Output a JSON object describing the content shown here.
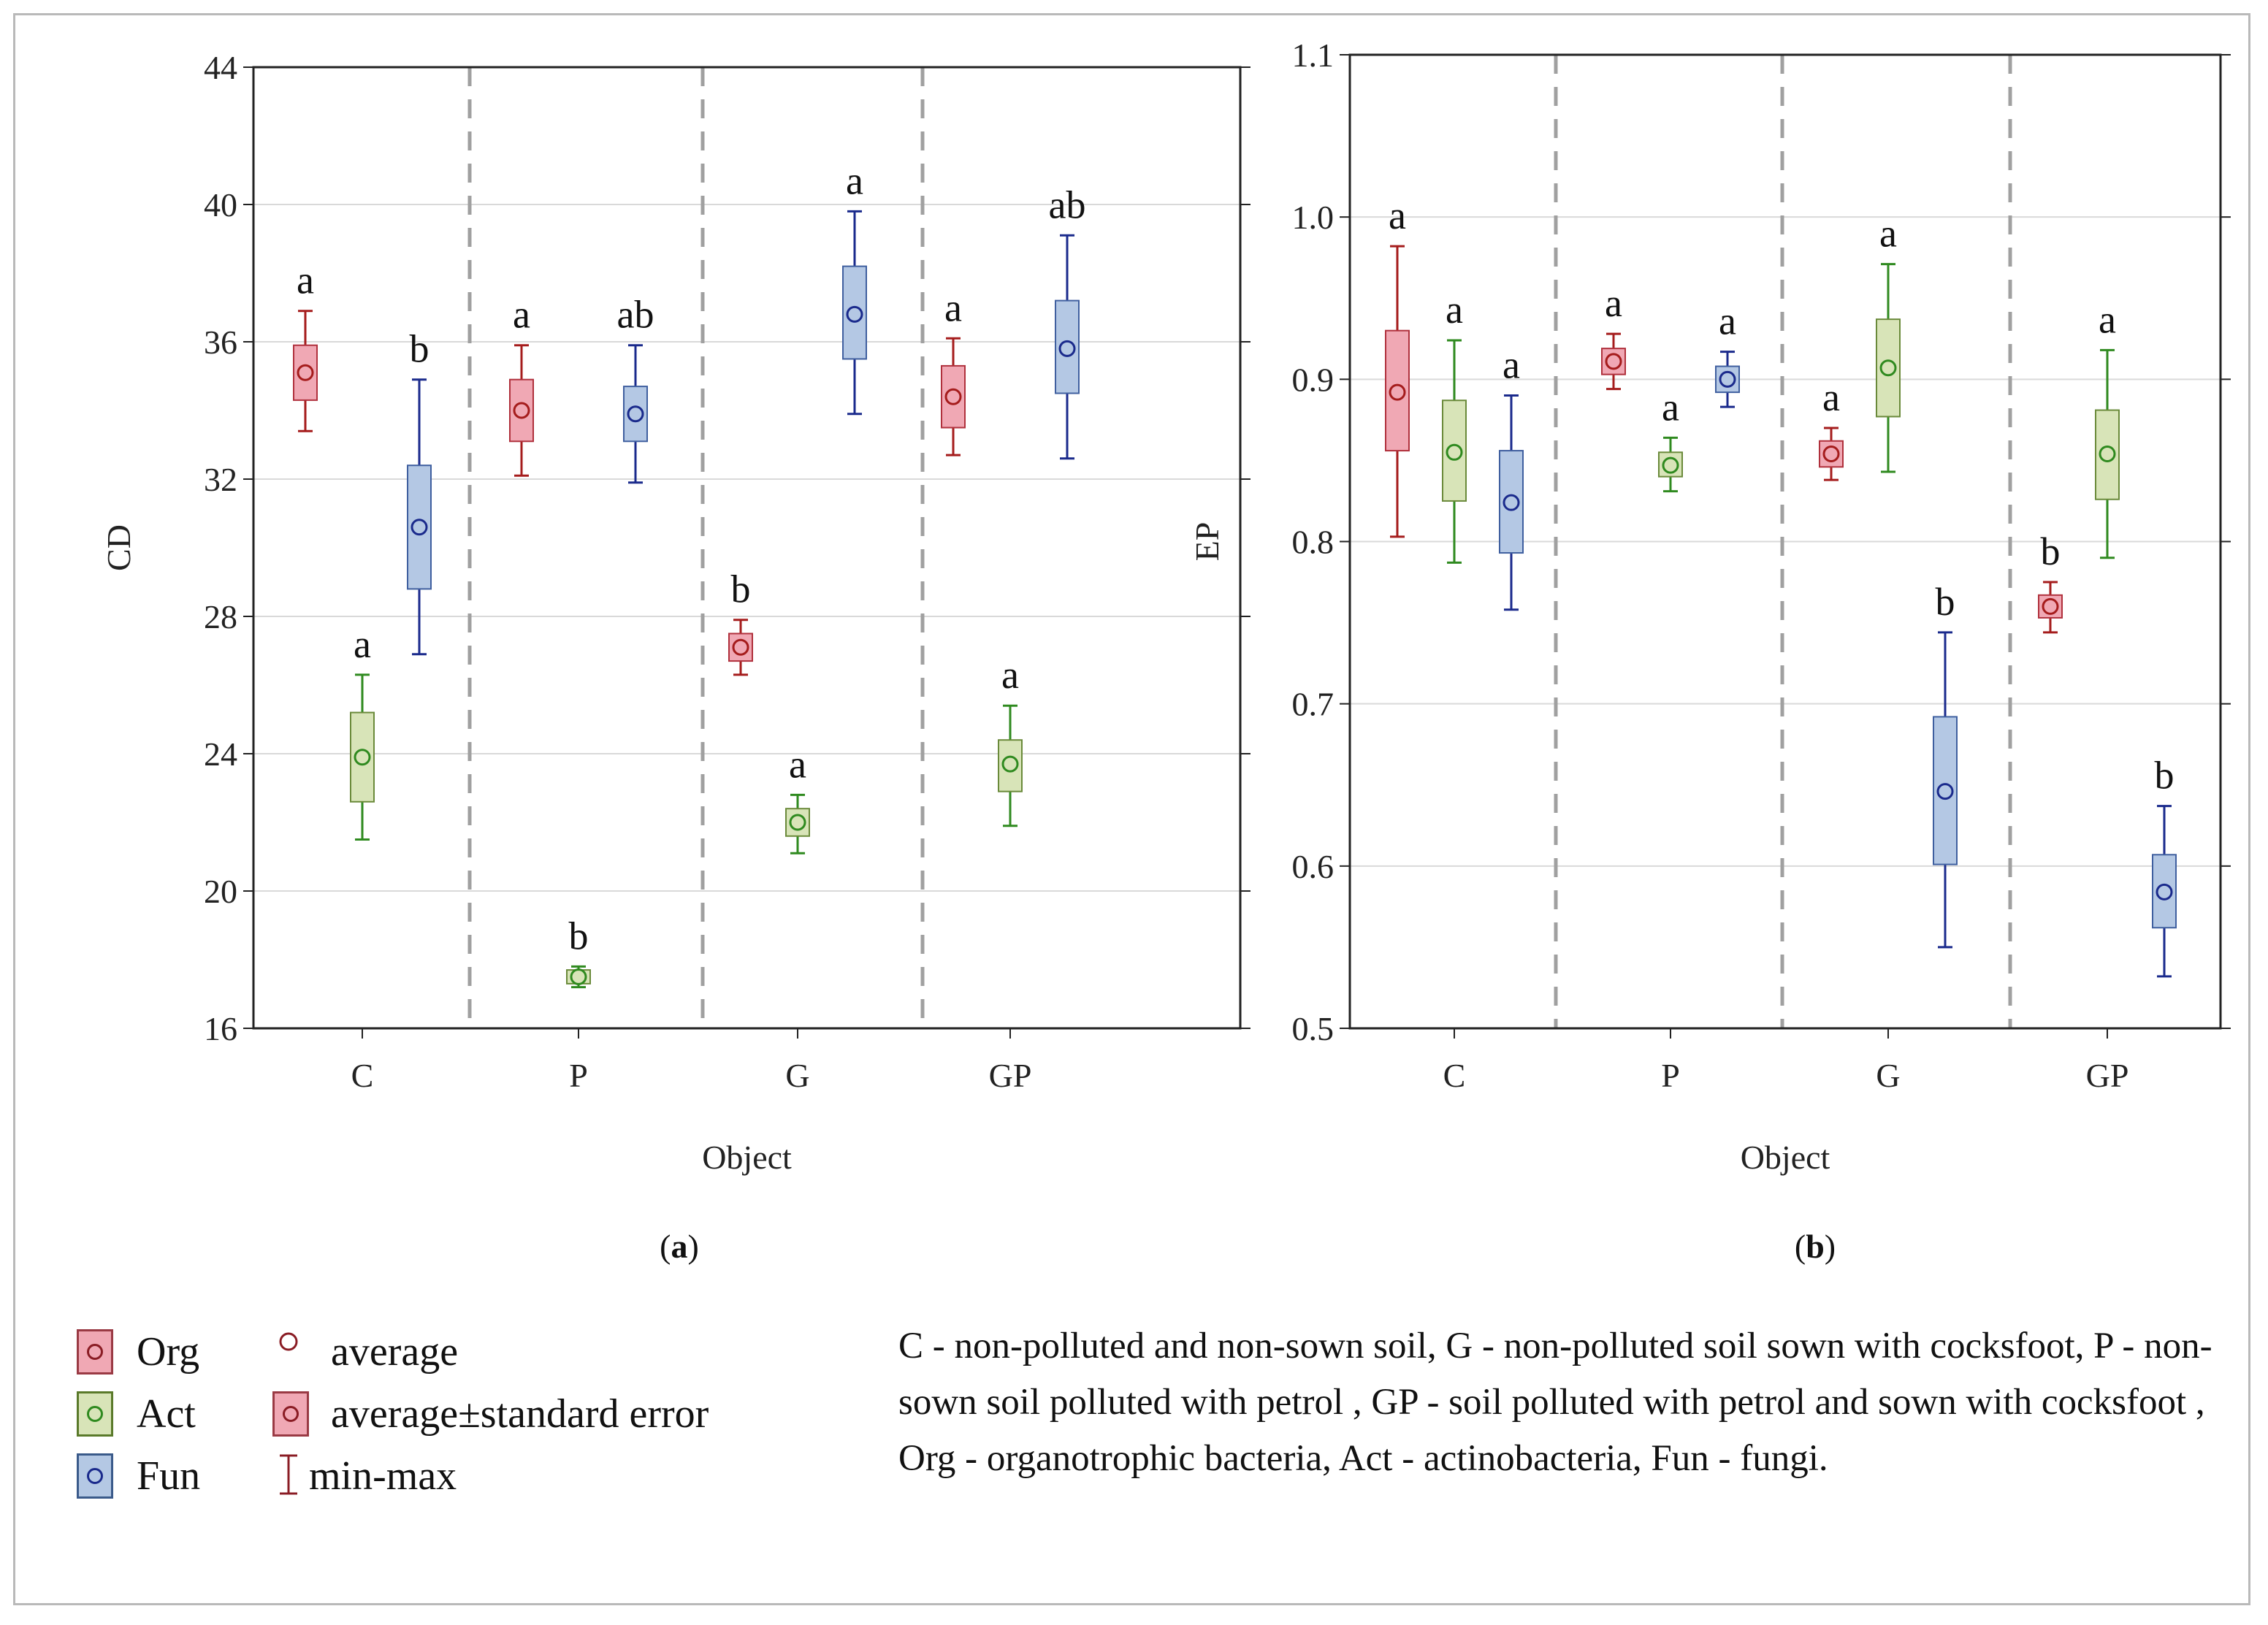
{
  "chart_data": [
    {
      "type": "boxplot",
      "panel": "a",
      "caption": "(a)",
      "ylabel": "CD",
      "xlabel": "Object",
      "ylim": [
        16,
        44
      ],
      "yticks": [
        16,
        20,
        24,
        28,
        32,
        36,
        40,
        44
      ],
      "ytick_labels": [
        "16",
        "20",
        "24",
        "28",
        "32",
        "36",
        "40",
        "44"
      ],
      "grid": true,
      "categories": [
        "C",
        "P",
        "G",
        "GP"
      ],
      "series": [
        {
          "name": "Org",
          "boxes": [
            {
              "mean": 35.1,
              "se_low": 34.3,
              "se_high": 35.9,
              "min": 33.4,
              "max": 36.9,
              "letter": "a"
            },
            {
              "mean": 34.0,
              "se_low": 33.1,
              "se_high": 34.9,
              "min": 32.1,
              "max": 35.9,
              "letter": "a"
            },
            {
              "mean": 27.1,
              "se_low": 26.7,
              "se_high": 27.5,
              "min": 26.3,
              "max": 27.9,
              "letter": "b"
            },
            {
              "mean": 34.4,
              "se_low": 33.5,
              "se_high": 35.3,
              "min": 32.7,
              "max": 36.1,
              "letter": "a"
            }
          ]
        },
        {
          "name": "Act",
          "boxes": [
            {
              "mean": 23.9,
              "se_low": 22.6,
              "se_high": 25.2,
              "min": 21.5,
              "max": 26.3,
              "letter": "a"
            },
            {
              "mean": 17.5,
              "se_low": 17.3,
              "se_high": 17.7,
              "min": 17.2,
              "max": 17.8,
              "letter": "b"
            },
            {
              "mean": 22.0,
              "se_low": 21.6,
              "se_high": 22.4,
              "min": 21.1,
              "max": 22.8,
              "letter": "a"
            },
            {
              "mean": 23.7,
              "se_low": 22.9,
              "se_high": 24.4,
              "min": 21.9,
              "max": 25.4,
              "letter": "a"
            }
          ]
        },
        {
          "name": "Fun",
          "boxes": [
            {
              "mean": 30.6,
              "se_low": 28.8,
              "se_high": 32.4,
              "min": 26.9,
              "max": 34.9,
              "letter": "b"
            },
            {
              "mean": 33.9,
              "se_low": 33.1,
              "se_high": 34.7,
              "min": 31.9,
              "max": 35.9,
              "letter": "ab"
            },
            {
              "mean": 36.8,
              "se_low": 35.5,
              "se_high": 38.2,
              "min": 33.9,
              "max": 39.8,
              "letter": "a"
            },
            {
              "mean": 35.8,
              "se_low": 34.5,
              "se_high": 37.2,
              "min": 32.6,
              "max": 39.1,
              "letter": "ab"
            }
          ]
        }
      ]
    },
    {
      "type": "boxplot",
      "panel": "b",
      "caption": "(b)",
      "ylabel": "EP",
      "xlabel": "Object",
      "ylim": [
        0.5,
        1.1
      ],
      "yticks": [
        0.5,
        0.6,
        0.7,
        0.8,
        0.9,
        1.0,
        1.1
      ],
      "ytick_labels": [
        "0.5",
        "0.6",
        "0.7",
        "0.8",
        "0.9",
        "1.0",
        "1.1"
      ],
      "grid": true,
      "categories": [
        "C",
        "P",
        "G",
        "GP"
      ],
      "series": [
        {
          "name": "Org",
          "boxes": [
            {
              "mean": 0.892,
              "se_low": 0.856,
              "se_high": 0.93,
              "min": 0.803,
              "max": 0.982,
              "letter": "a"
            },
            {
              "mean": 0.911,
              "se_low": 0.903,
              "se_high": 0.919,
              "min": 0.894,
              "max": 0.928,
              "letter": "a"
            },
            {
              "mean": 0.854,
              "se_low": 0.846,
              "se_high": 0.862,
              "min": 0.838,
              "max": 0.87,
              "letter": "a"
            },
            {
              "mean": 0.76,
              "se_low": 0.753,
              "se_high": 0.767,
              "min": 0.744,
              "max": 0.775,
              "letter": "b"
            }
          ]
        },
        {
          "name": "Act",
          "boxes": [
            {
              "mean": 0.855,
              "se_low": 0.825,
              "se_high": 0.887,
              "min": 0.787,
              "max": 0.924,
              "letter": "a"
            },
            {
              "mean": 0.847,
              "se_low": 0.84,
              "se_high": 0.855,
              "min": 0.831,
              "max": 0.864,
              "letter": "a"
            },
            {
              "mean": 0.907,
              "se_low": 0.877,
              "se_high": 0.937,
              "min": 0.843,
              "max": 0.971,
              "letter": "a"
            },
            {
              "mean": 0.854,
              "se_low": 0.826,
              "se_high": 0.881,
              "min": 0.79,
              "max": 0.918,
              "letter": "a"
            }
          ]
        },
        {
          "name": "Fun",
          "boxes": [
            {
              "mean": 0.824,
              "se_low": 0.793,
              "se_high": 0.856,
              "min": 0.758,
              "max": 0.89,
              "letter": "a"
            },
            {
              "mean": 0.9,
              "se_low": 0.892,
              "se_high": 0.908,
              "min": 0.883,
              "max": 0.917,
              "letter": "a"
            },
            {
              "mean": 0.646,
              "se_low": 0.601,
              "se_high": 0.692,
              "min": 0.55,
              "max": 0.744,
              "letter": "b"
            },
            {
              "mean": 0.584,
              "se_low": 0.562,
              "se_high": 0.607,
              "min": 0.532,
              "max": 0.637,
              "letter": "b"
            }
          ]
        }
      ]
    }
  ],
  "colors": {
    "Org": {
      "fill": "#f0a8b4",
      "stroke": "#b0303c",
      "whisker": "#a51c1c"
    },
    "Act": {
      "fill": "#d8e4b8",
      "stroke": "#6a8a3a",
      "whisker": "#2f8a1f"
    },
    "Fun": {
      "fill": "#b4c8e4",
      "stroke": "#3f5f9f",
      "whisker": "#1a2a8c"
    },
    "grid": "#d9d9d9",
    "separator": "#a0a0a0"
  },
  "legend": {
    "series": [
      "Org",
      "Act",
      "Fun"
    ],
    "symbols": [
      {
        "label": "average"
      },
      {
        "label": "average±standard error"
      },
      {
        "label": "min-max"
      }
    ]
  },
  "footnote": "C - non-polluted and non-sown soil, G - non-polluted soil sown with cocksfoot, P - non-sown soil polluted with petrol , GP - soil polluted with petrol and sown with cocksfoot , Org - organotrophic bacteria, Act - actinobacteria, Fun - fungi."
}
